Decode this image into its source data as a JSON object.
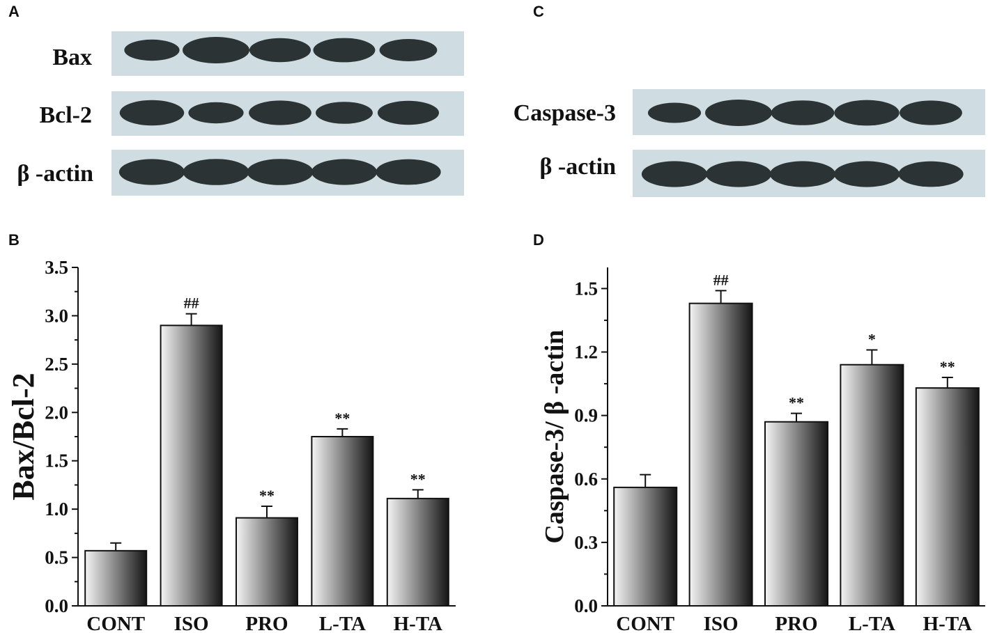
{
  "panels": {
    "A": "A",
    "B": "B",
    "C": "C",
    "D": "D"
  },
  "blot_A": {
    "rows": [
      {
        "label": "Bax",
        "bands": [
          0.62,
          1.0,
          0.82,
          0.84,
          0.7
        ]
      },
      {
        "label": "Bcl-2",
        "bands": [
          0.92,
          0.62,
          0.86,
          0.68,
          0.82
        ]
      },
      {
        "label": "β -actin",
        "bands": [
          0.96,
          0.98,
          0.98,
          0.96,
          0.94
        ]
      }
    ]
  },
  "blot_C": {
    "rows": [
      {
        "label": "Caspase-3",
        "bands": [
          0.55,
          1.0,
          0.88,
          0.94,
          0.86
        ]
      },
      {
        "label": "β -actin",
        "bands": [
          0.96,
          0.96,
          0.96,
          0.96,
          0.94
        ]
      }
    ]
  },
  "chart_data": [
    {
      "type": "bar",
      "panel": "B",
      "categories": [
        "CONT",
        "ISO",
        "PRO",
        "L-TA",
        "H-TA"
      ],
      "values": [
        0.57,
        2.9,
        0.91,
        1.75,
        1.11
      ],
      "errors": [
        0.08,
        0.12,
        0.12,
        0.08,
        0.09
      ],
      "significance": [
        "",
        "##",
        "**",
        "**",
        "**"
      ],
      "ylabel": "Bax/Bcl-2",
      "xlabel": "",
      "ylim": [
        0,
        3.5
      ],
      "yticks": [
        0.0,
        0.5,
        1.0,
        1.5,
        2.0,
        2.5,
        3.0,
        3.5
      ],
      "ytick_labels": [
        "0.0",
        "0.5",
        "1.0",
        "1.5",
        "2.0",
        "2.5",
        "3.0",
        "3.5"
      ]
    },
    {
      "type": "bar",
      "panel": "D",
      "categories": [
        "CONT",
        "ISO",
        "PRO",
        "L-TA",
        "H-TA"
      ],
      "values": [
        0.56,
        1.43,
        0.87,
        1.14,
        1.03
      ],
      "errors": [
        0.06,
        0.06,
        0.04,
        0.07,
        0.05
      ],
      "significance": [
        "",
        "##",
        "**",
        "*",
        "**"
      ],
      "ylabel": "Caspase-3/ β -actin",
      "xlabel": "",
      "ylim": [
        0,
        1.6
      ],
      "yticks": [
        0.0,
        0.3,
        0.6,
        0.9,
        1.2,
        1.5
      ],
      "ytick_labels": [
        "0.0",
        "0.3",
        "0.6",
        "0.9",
        "1.2",
        "1.5"
      ]
    }
  ],
  "colors": {
    "blot_background": "#cfdde3",
    "band": "#2b3334",
    "bar_light": "#f4f4f4",
    "bar_dark": "#151515",
    "axis": "#111111"
  }
}
